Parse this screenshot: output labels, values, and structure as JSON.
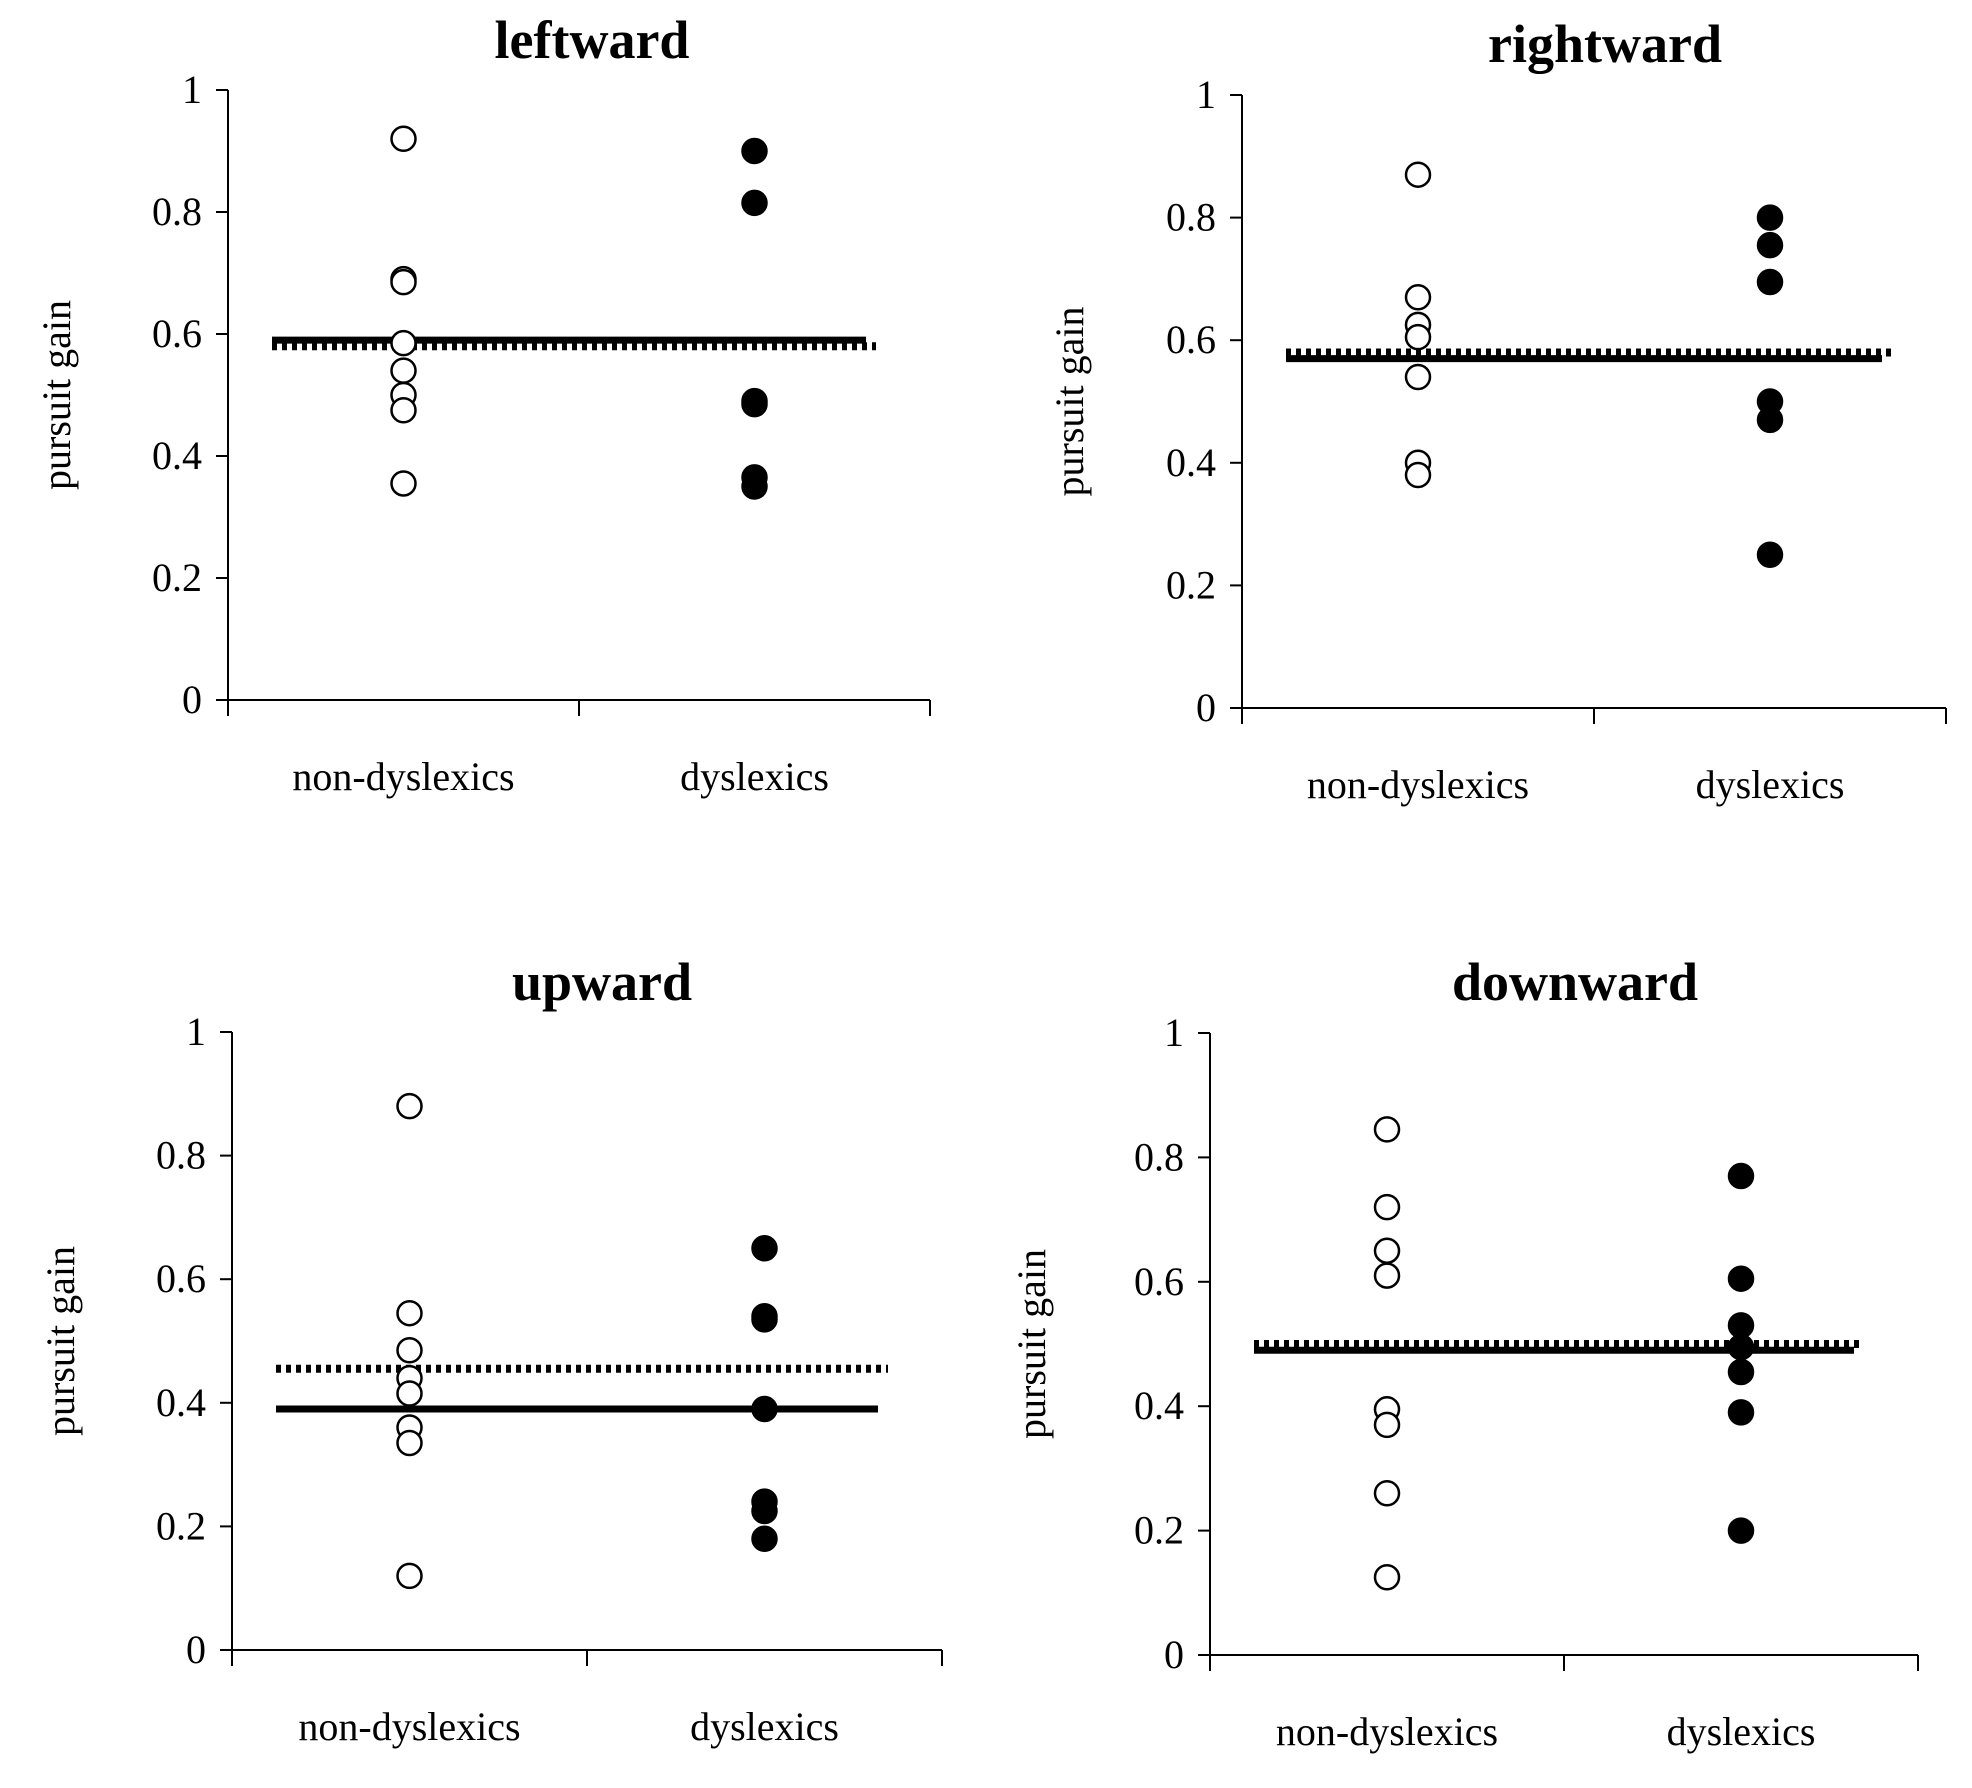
{
  "figure": {
    "colors": {
      "ink": "#000000",
      "hollow_fill": "#ffffff"
    }
  },
  "chart_data": [
    {
      "type": "scatter",
      "title": "leftward",
      "ylabel": "pursuit gain",
      "xlabel": "",
      "categories": [
        "non-dyslexics",
        "dyslexics"
      ],
      "ylim": [
        0,
        1
      ],
      "yticks": [
        "0",
        "0.2",
        "0.4",
        "0.6",
        "0.8",
        "1"
      ],
      "grid": false,
      "series": [
        {
          "category": "non-dyslexics",
          "marker": "open-circle",
          "values": [
            0.92,
            0.69,
            0.685,
            0.585,
            0.54,
            0.5,
            0.475,
            0.355
          ]
        },
        {
          "category": "dyslexics",
          "marker": "filled-circle",
          "values": [
            0.9,
            0.815,
            0.49,
            0.485,
            0.365,
            0.35
          ]
        }
      ],
      "reference_lines": [
        {
          "style": "solid",
          "y": 0.59
        },
        {
          "style": "dotted",
          "y": 0.58
        }
      ]
    },
    {
      "type": "scatter",
      "title": "rightward",
      "ylabel": "pursuit gain",
      "xlabel": "",
      "categories": [
        "non-dyslexics",
        "dyslexics"
      ],
      "ylim": [
        0,
        1
      ],
      "yticks": [
        "0",
        "0.2",
        "0.4",
        "0.6",
        "0.8",
        "1"
      ],
      "grid": false,
      "series": [
        {
          "category": "non-dyslexics",
          "marker": "open-circle",
          "values": [
            0.87,
            0.67,
            0.625,
            0.605,
            0.54,
            0.4,
            0.38
          ]
        },
        {
          "category": "dyslexics",
          "marker": "filled-circle",
          "values": [
            0.8,
            0.755,
            0.695,
            0.5,
            0.47,
            0.25
          ]
        }
      ],
      "reference_lines": [
        {
          "style": "solid",
          "y": 0.57
        },
        {
          "style": "dotted",
          "y": 0.58
        }
      ]
    },
    {
      "type": "scatter",
      "title": "upward",
      "ylabel": "pursuit gain",
      "xlabel": "",
      "categories": [
        "non-dyslexics",
        "dyslexics"
      ],
      "ylim": [
        0,
        1
      ],
      "yticks": [
        "0",
        "0.2",
        "0.4",
        "0.6",
        "0.8",
        "1"
      ],
      "grid": false,
      "series": [
        {
          "category": "non-dyslexics",
          "marker": "open-circle",
          "values": [
            0.88,
            0.545,
            0.485,
            0.44,
            0.415,
            0.36,
            0.335,
            0.12
          ]
        },
        {
          "category": "dyslexics",
          "marker": "filled-circle",
          "values": [
            0.65,
            0.54,
            0.535,
            0.39,
            0.24,
            0.225,
            0.18
          ]
        }
      ],
      "reference_lines": [
        {
          "style": "solid",
          "y": 0.39
        },
        {
          "style": "dotted",
          "y": 0.455
        }
      ]
    },
    {
      "type": "scatter",
      "title": "downward",
      "ylabel": "pursuit gain",
      "xlabel": "",
      "categories": [
        "non-dyslexics",
        "dyslexics"
      ],
      "ylim": [
        0,
        1
      ],
      "yticks": [
        "0",
        "0.2",
        "0.4",
        "0.6",
        "0.8",
        "1"
      ],
      "grid": false,
      "series": [
        {
          "category": "non-dyslexics",
          "marker": "open-circle",
          "values": [
            0.845,
            0.72,
            0.65,
            0.61,
            0.395,
            0.37,
            0.26,
            0.125
          ]
        },
        {
          "category": "dyslexics",
          "marker": "filled-circle",
          "values": [
            0.77,
            0.605,
            0.53,
            0.495,
            0.455,
            0.39,
            0.2
          ]
        }
      ],
      "reference_lines": [
        {
          "style": "solid",
          "y": 0.49
        },
        {
          "style": "dotted",
          "y": 0.5
        }
      ]
    }
  ]
}
